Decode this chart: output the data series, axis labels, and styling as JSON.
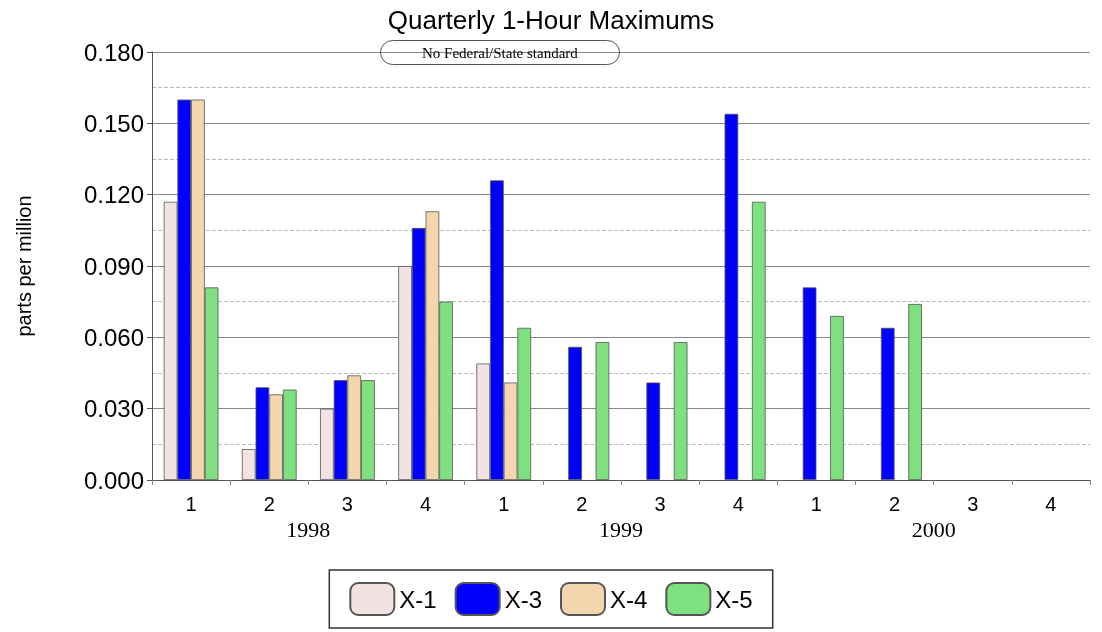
{
  "chart_data": {
    "type": "bar",
    "title": "Quarterly 1-Hour Maximums",
    "ylabel": "parts per million",
    "categories": [
      "1",
      "2",
      "3",
      "4",
      "1",
      "2",
      "3",
      "4",
      "1",
      "2",
      "3",
      "4"
    ],
    "annotations": [
      "No Federal/State standard",
      "1998",
      "1999",
      "2000"
    ],
    "series": [
      {
        "name": "X-1",
        "color": "#f2e2e2",
        "values": [
          0.117,
          0.013,
          0.03,
          0.09,
          0.049,
          null,
          null,
          null,
          null,
          null,
          null,
          null
        ]
      },
      {
        "name": "X-3",
        "color": "#0000ff",
        "values": [
          0.16,
          0.039,
          0.042,
          0.106,
          0.126,
          0.056,
          0.041,
          0.154,
          0.081,
          0.064,
          null,
          null
        ]
      },
      {
        "name": "X-4",
        "color": "#f4d6ae",
        "values": [
          0.16,
          0.036,
          0.044,
          0.113,
          0.041,
          null,
          null,
          null,
          null,
          null,
          null,
          null
        ]
      },
      {
        "name": "X-5",
        "color": "#7fe07f",
        "values": [
          0.081,
          0.038,
          0.042,
          0.075,
          0.064,
          0.058,
          0.058,
          0.117,
          0.069,
          0.074,
          null,
          null
        ]
      }
    ],
    "ylim": [
      0,
      0.18
    ],
    "yticks": [
      {
        "value": 0,
        "label": "0.000"
      },
      {
        "value": 0.03,
        "label": "0.030"
      },
      {
        "value": 0.06,
        "label": "0.060"
      },
      {
        "value": 0.09,
        "label": "0.090"
      },
      {
        "value": 0.12,
        "label": "0.120"
      },
      {
        "value": 0.15,
        "label": "0.150"
      },
      {
        "value": 0.18,
        "label": "0.180"
      }
    ],
    "grid": "y",
    "legend": "bottom"
  }
}
